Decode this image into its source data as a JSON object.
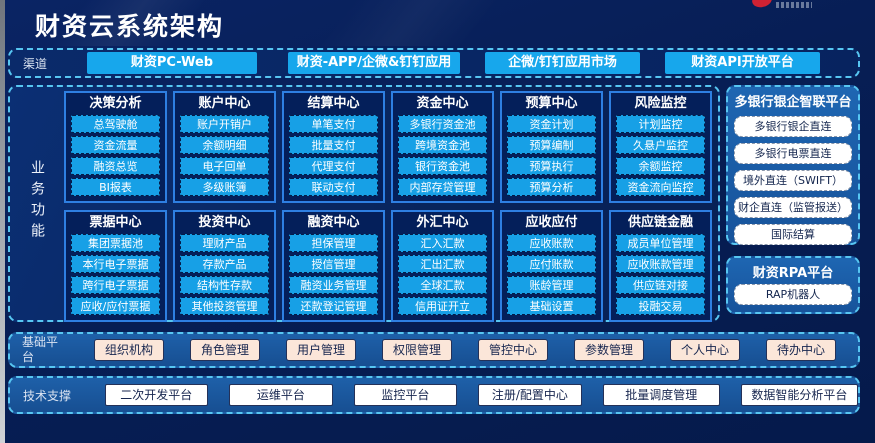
{
  "page": {
    "title": "财资云系统架构"
  },
  "colors": {
    "background": "#071f5a",
    "accent_cyan_button": "#17a7ec",
    "dashed_border": "#57c6f2",
    "card_border": "#2e7fe2",
    "panel_blue": "#1c5ea9",
    "peach_box": "#fbe6d9",
    "white_box": "#ffffff",
    "logo_red": "#cf2233"
  },
  "channels": {
    "label": "渠道",
    "items": [
      "财资PC-Web",
      "财资-APP/企微&钉钉应用",
      "企微/钉钉应用市场",
      "财资API开放平台"
    ]
  },
  "business": {
    "label": "业务功能",
    "modules": [
      {
        "title": "决策分析",
        "items": [
          "总驾驶舱",
          "资金流量",
          "融资总览",
          "BI报表"
        ]
      },
      {
        "title": "账户中心",
        "items": [
          "账户开销户",
          "余额明细",
          "电子回单",
          "多级账簿"
        ]
      },
      {
        "title": "结算中心",
        "items": [
          "单笔支付",
          "批量支付",
          "代理支付",
          "联动支付"
        ]
      },
      {
        "title": "资金中心",
        "items": [
          "多银行资金池",
          "跨境资金池",
          "银行资金池",
          "内部存贷管理"
        ]
      },
      {
        "title": "预算中心",
        "items": [
          "资金计划",
          "预算编制",
          "预算执行",
          "预算分析"
        ]
      },
      {
        "title": "风险监控",
        "items": [
          "计划监控",
          "久悬户监控",
          "余额监控",
          "资金流向监控"
        ]
      },
      {
        "title": "票据中心",
        "items": [
          "集团票据池",
          "本行电子票据",
          "跨行电子票据",
          "应收/应付票据"
        ]
      },
      {
        "title": "投资中心",
        "items": [
          "理财产品",
          "存款产品",
          "结构性存款",
          "其他投资管理"
        ]
      },
      {
        "title": "融资中心",
        "items": [
          "担保管理",
          "授信管理",
          "融资业务管理",
          "还款登记管理"
        ]
      },
      {
        "title": "外汇中心",
        "items": [
          "汇入汇款",
          "汇出汇款",
          "全球汇款",
          "信用证开立"
        ]
      },
      {
        "title": "应收应付",
        "items": [
          "应收账款",
          "应付账款",
          "账龄管理",
          "基础设置"
        ]
      },
      {
        "title": "供应链金融",
        "items": [
          "成员单位管理",
          "应收账款管理",
          "供应链对接",
          "投融交易"
        ]
      }
    ]
  },
  "right_panels": [
    {
      "title": "多银行银企智联平台",
      "items": [
        "多银行银企直连",
        "多银行电票直连",
        "境外直连（SWIFT）",
        "财企直连（监管报送）",
        "国际结算"
      ]
    },
    {
      "title": "财资RPA平台",
      "items": [
        "RAP机器人"
      ]
    }
  ],
  "base_platform": {
    "label": "基础平台",
    "items": [
      "组织机构",
      "角色管理",
      "用户管理",
      "权限管理",
      "管控中心",
      "参数管理",
      "个人中心",
      "待办中心"
    ]
  },
  "tech_support": {
    "label": "技术支撑",
    "items": [
      "二次开发平台",
      "运维平台",
      "监控平台",
      "注册/配置中心",
      "批量调度管理",
      "数据智能分析平台"
    ]
  }
}
